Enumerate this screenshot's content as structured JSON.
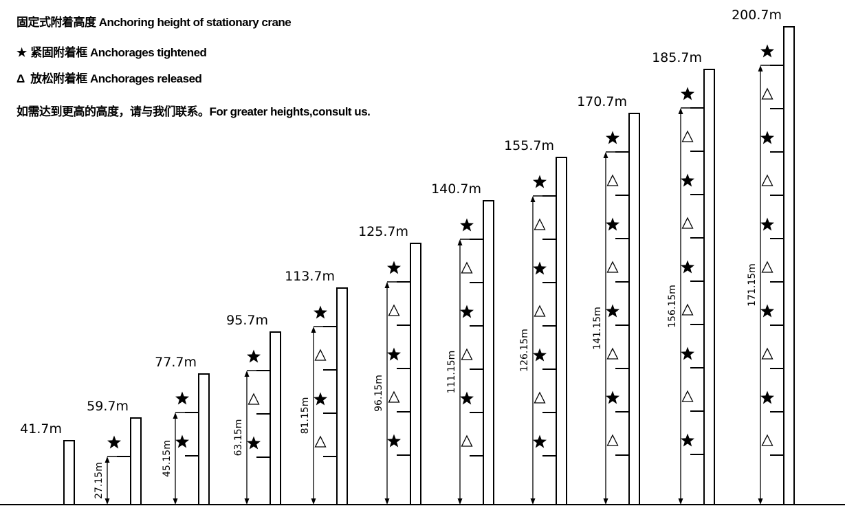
{
  "legend": {
    "title": "固定式附着高度 Anchoring height of stationary crane",
    "tightened_symbol": "★",
    "tightened_label": "紧固附着框   Anchorages tightened",
    "released_symbol": "Δ",
    "released_label": "放松附着框   Anchorages released",
    "note": "如需达到更高的高度，请与我们联系。For greater heights,consult us."
  },
  "masts": [
    {
      "height_label": "41.7m",
      "anchor_label": "",
      "markers": []
    },
    {
      "height_label": "59.7m",
      "anchor_label": "27.15m",
      "markers": [
        "star"
      ]
    },
    {
      "height_label": "77.7m",
      "anchor_label": "45.15m",
      "markers": [
        "star",
        "star"
      ]
    },
    {
      "height_label": "95.7m",
      "anchor_label": "63.15m",
      "markers": [
        "star",
        "triangle",
        "star"
      ]
    },
    {
      "height_label": "113.7m",
      "anchor_label": "81.15m",
      "markers": [
        "star",
        "triangle",
        "star",
        "triangle"
      ]
    },
    {
      "height_label": "125.7m",
      "anchor_label": "96.15m",
      "markers": [
        "star",
        "triangle",
        "star",
        "triangle",
        "star"
      ]
    },
    {
      "height_label": "140.7m",
      "anchor_label": "111.15m",
      "markers": [
        "star",
        "triangle",
        "star",
        "triangle",
        "star",
        "triangle"
      ]
    },
    {
      "height_label": "155.7m",
      "anchor_label": "126.15m",
      "markers": [
        "star",
        "triangle",
        "star",
        "triangle",
        "star",
        "triangle",
        "star"
      ]
    },
    {
      "height_label": "170.7m",
      "anchor_label": "141.15m",
      "markers": [
        "star",
        "triangle",
        "star",
        "triangle",
        "star",
        "triangle",
        "star",
        "triangle"
      ]
    },
    {
      "height_label": "185.7m",
      "anchor_label": "156.15m",
      "markers": [
        "star",
        "triangle",
        "star",
        "triangle",
        "star",
        "triangle",
        "star",
        "triangle",
        "star"
      ]
    },
    {
      "height_label": "200.7m",
      "anchor_label": "171.15m",
      "markers": [
        "star",
        "triangle",
        "star",
        "triangle",
        "star",
        "triangle",
        "star",
        "triangle",
        "star",
        "triangle"
      ]
    }
  ]
}
